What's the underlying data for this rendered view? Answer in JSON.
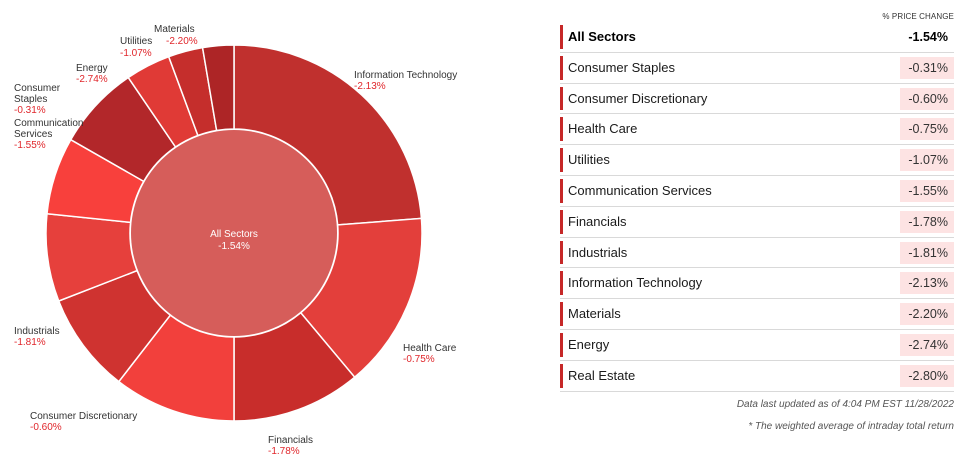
{
  "chart_data": {
    "type": "pie",
    "center": {
      "name": "All Sectors",
      "value": "-1.54%"
    },
    "slices": [
      {
        "name": "Information Technology",
        "value": "-2.13%",
        "weight": 24.0,
        "color": "#c0302e"
      },
      {
        "name": "Health Care",
        "value": "-0.75%",
        "weight": 15.3,
        "color": "#e33f3b"
      },
      {
        "name": "Financials",
        "value": "-1.78%",
        "weight": 11.2,
        "color": "#c82d2b"
      },
      {
        "name": "Consumer Discretionary",
        "value": "-0.60%",
        "weight": 10.6,
        "color": "#f2403c"
      },
      {
        "name": "Industrials",
        "value": "-1.81%",
        "weight": 8.7,
        "color": "#cf3330"
      },
      {
        "name": "",
        "value": "",
        "weight": 7.6,
        "color": "#e6403c"
      },
      {
        "name": "Consumer Staples",
        "value": "-0.31%",
        "weight": 6.7,
        "color": "#f8403c"
      },
      {
        "name": "Communication Services",
        "value": "-1.55%",
        "weight": 7.3,
        "color": "#b2272a"
      },
      {
        "name": "Energy",
        "value": "-2.74%",
        "weight": 3.9,
        "color": "#e03a36"
      },
      {
        "name": "Utilities",
        "value": "-1.07%",
        "weight": 3.0,
        "color": "#c52e2c"
      },
      {
        "name": "Materials",
        "value": "-2.20%",
        "weight": 2.7,
        "color": "#ad2526"
      }
    ],
    "labels": [
      {
        "name": "Information Technology",
        "value": "-2.13%"
      },
      {
        "name": "Health Care",
        "value": "-0.75%"
      },
      {
        "name": "Financials",
        "value": "-1.78%"
      },
      {
        "name": "Consumer Discretionary",
        "value": "-0.60%"
      },
      {
        "name": "Industrials",
        "value": "-1.81%"
      },
      {
        "name": "Communication Services",
        "value": "-1.55%"
      },
      {
        "name": "Consumer Staples",
        "value": "-0.31%"
      },
      {
        "name": "Energy",
        "value": "-2.74%"
      },
      {
        "name": "Utilities",
        "value": "-1.07%"
      },
      {
        "name": "Materials",
        "value": "-2.20%"
      }
    ]
  },
  "table": {
    "header": "% PRICE CHANGE",
    "rows": [
      {
        "name": "All Sectors",
        "value": "-1.54%"
      },
      {
        "name": "Consumer Staples",
        "value": "-0.31%"
      },
      {
        "name": "Consumer Discretionary",
        "value": "-0.60%"
      },
      {
        "name": "Health Care",
        "value": "-0.75%"
      },
      {
        "name": "Utilities",
        "value": "-1.07%"
      },
      {
        "name": "Communication Services",
        "value": "-1.55%"
      },
      {
        "name": "Financials",
        "value": "-1.78%"
      },
      {
        "name": "Industrials",
        "value": "-1.81%"
      },
      {
        "name": "Information Technology",
        "value": "-2.13%"
      },
      {
        "name": "Materials",
        "value": "-2.20%"
      },
      {
        "name": "Energy",
        "value": "-2.74%"
      },
      {
        "name": "Real Estate",
        "value": "-2.80%"
      }
    ]
  },
  "footer": {
    "updated": "Data last updated as of 4:04 PM EST 11/28/2022",
    "note": "* The weighted average of intraday total return"
  },
  "colors": {
    "accent": "#c62828",
    "center": "#d65d5a",
    "value_text": "#e0262b",
    "value_bg": "#fde3e3"
  }
}
